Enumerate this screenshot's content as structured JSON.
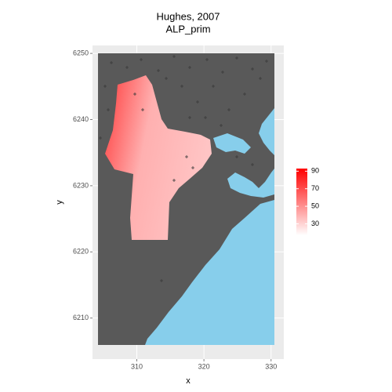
{
  "chart_data": {
    "type": "raster",
    "title": "Hughes, 2007",
    "subtitle": "ALP_prim",
    "x_label": "x",
    "y_label": "y",
    "xlim": [
      303.4,
      331.9
    ],
    "ylim": [
      6203.8,
      6251.2
    ],
    "xticks": [
      310,
      320,
      330
    ],
    "yticks": [
      6210,
      6220,
      6230,
      6240,
      6250
    ],
    "grid": true,
    "colorbar": {
      "lim": [
        17,
        93
      ],
      "ticks": [
        30,
        50,
        70,
        90
      ],
      "low_color": "#ffffff",
      "high_color": "#ff0000"
    }
  }
}
